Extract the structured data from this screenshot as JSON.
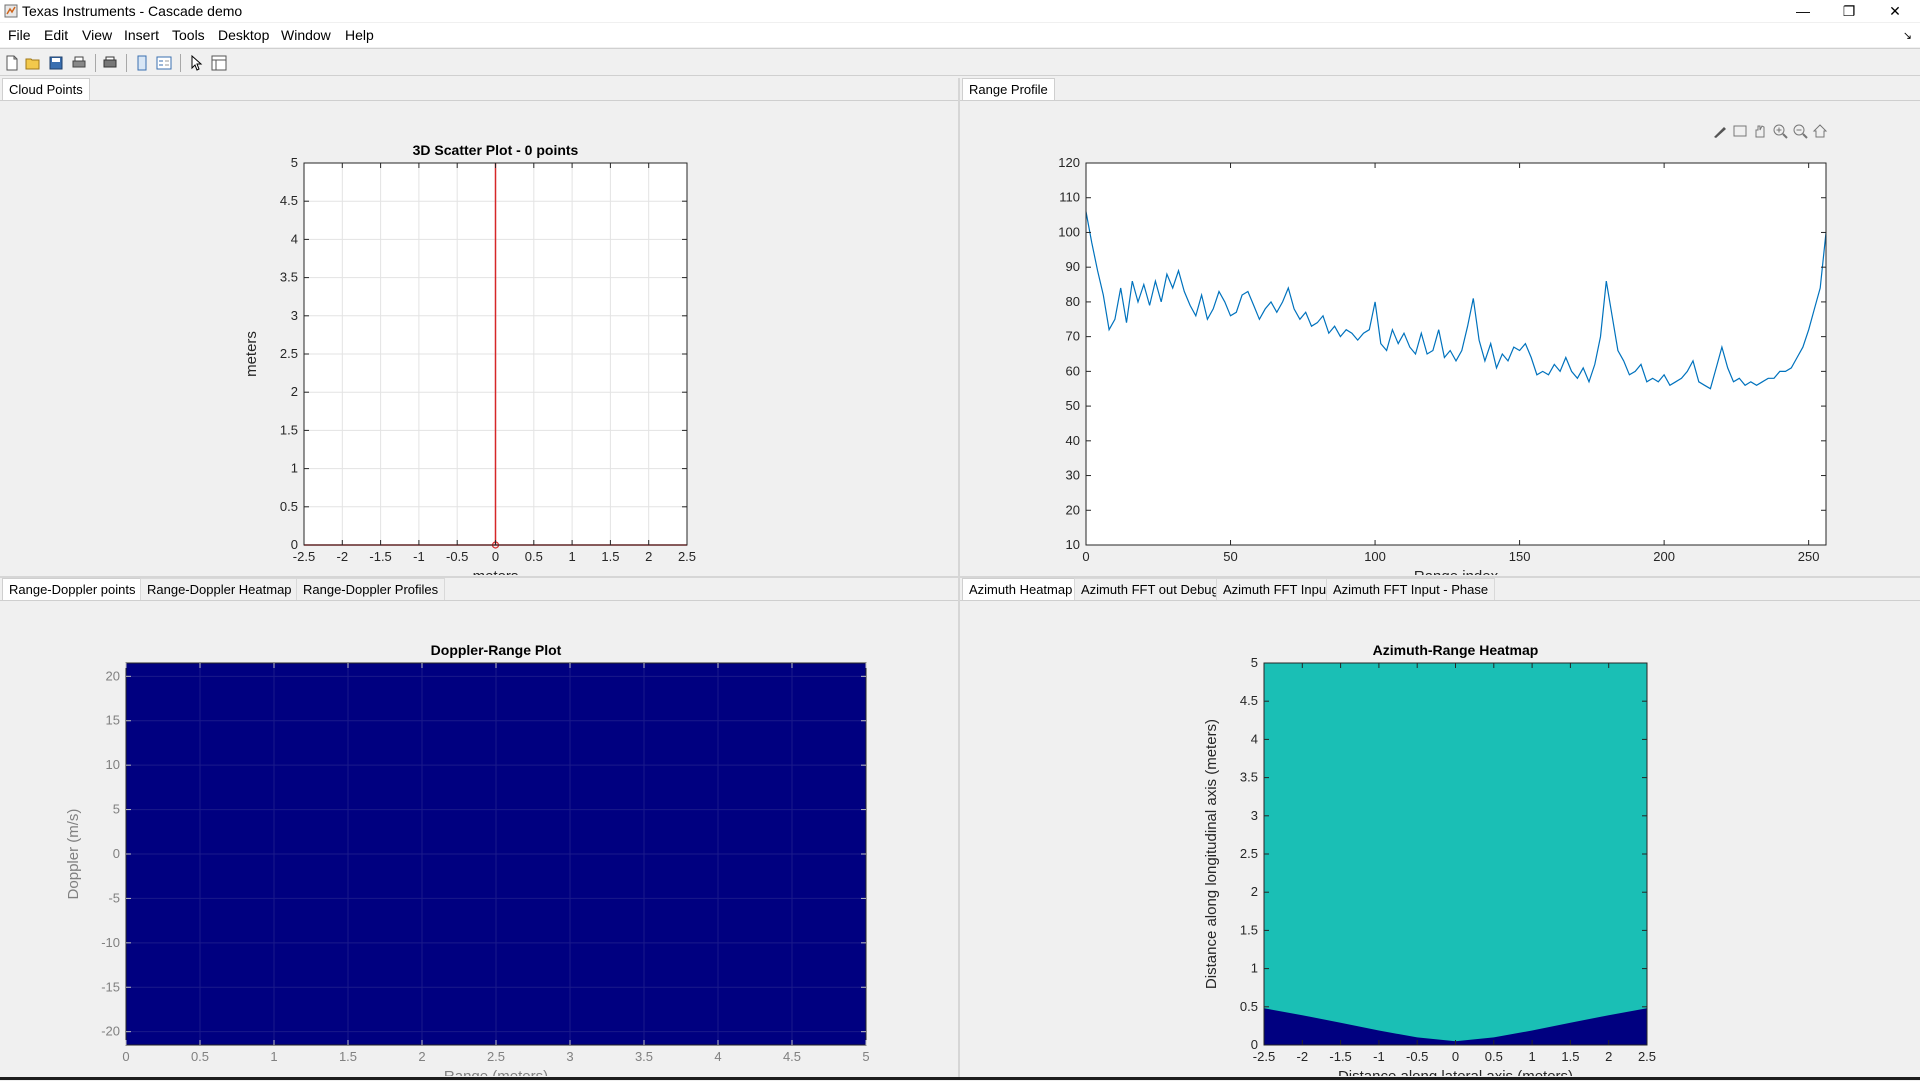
{
  "window": {
    "title": "Texas Instruments - Cascade demo",
    "icon": "matlab-figure-icon",
    "minimize": "—",
    "restore": "❐",
    "close": "✕"
  },
  "menu": {
    "items": [
      "File",
      "Edit",
      "View",
      "Insert",
      "Tools",
      "Desktop",
      "Window",
      "Help"
    ],
    "dock_arrow": "↘"
  },
  "toolbar": {
    "icons": [
      "new-figure-icon",
      "open-icon",
      "save-icon",
      "print-icon",
      "print-preview-icon",
      "toggle-plot-browser-icon",
      "insert-legend-icon",
      "edit-plot-icon",
      "property-inspector-icon"
    ]
  },
  "panels": {
    "top_left": {
      "tabs": [
        {
          "label": "Cloud Points",
          "active": true
        }
      ]
    },
    "top_right": {
      "tabs": [
        {
          "label": "Range Profile",
          "active": true
        }
      ]
    },
    "bottom_left": {
      "tabs": [
        {
          "label": "Range-Doppler points",
          "active": true
        },
        {
          "label": "Range-Doppler Heatmap",
          "active": false
        },
        {
          "label": "Range-Doppler Profiles",
          "active": false
        }
      ]
    },
    "bottom_right": {
      "tabs": [
        {
          "label": "Azimuth Heatmap",
          "active": true
        },
        {
          "label": "Azimuth FFT out Debug",
          "active": false
        },
        {
          "label": "Azimuth FFT Input",
          "active": false
        },
        {
          "label": "Azimuth FFT Input - Phase",
          "active": false
        }
      ]
    }
  },
  "axes_toolbar": {
    "icons": [
      "brush-icon",
      "data-tips-icon",
      "pan-icon",
      "zoom-in-icon",
      "zoom-out-icon",
      "home-icon"
    ]
  },
  "chart_data": [
    {
      "id": "scatter",
      "type": "scatter",
      "title": "3D Scatter Plot -   0 points",
      "xlabel": "meters",
      "ylabel": "meters",
      "xlim": [
        -2.5,
        2.5
      ],
      "ylim": [
        0,
        5
      ],
      "xticks": [
        -2.5,
        -2,
        -1.5,
        -1,
        -0.5,
        0,
        0.5,
        1,
        1.5,
        2,
        2.5
      ],
      "yticks": [
        0,
        0.5,
        1,
        1.5,
        2,
        2.5,
        3,
        3.5,
        4,
        4.5,
        5
      ],
      "grid": true,
      "points": [
        [
          0,
          0
        ]
      ],
      "color": "#d62728",
      "boresight_line_x": 0
    },
    {
      "id": "range_profile",
      "type": "line",
      "title": "",
      "xlabel": "Range index",
      "ylabel": "",
      "xlim": [
        0,
        256
      ],
      "ylim": [
        10,
        120
      ],
      "xticks": [
        0,
        50,
        100,
        150,
        200,
        250
      ],
      "yticks": [
        10,
        20,
        30,
        40,
        50,
        60,
        70,
        80,
        90,
        100,
        110,
        120
      ],
      "grid": false,
      "color": "#0072bd",
      "x": [
        0,
        2,
        4,
        6,
        8,
        10,
        12,
        14,
        16,
        18,
        20,
        22,
        24,
        26,
        28,
        30,
        32,
        34,
        36,
        38,
        40,
        42,
        44,
        46,
        48,
        50,
        52,
        54,
        56,
        58,
        60,
        62,
        64,
        66,
        68,
        70,
        72,
        74,
        76,
        78,
        80,
        82,
        84,
        86,
        88,
        90,
        92,
        94,
        96,
        98,
        100,
        102,
        104,
        106,
        108,
        110,
        112,
        114,
        116,
        118,
        120,
        122,
        124,
        126,
        128,
        130,
        132,
        134,
        136,
        138,
        140,
        142,
        144,
        146,
        148,
        150,
        152,
        154,
        156,
        158,
        160,
        162,
        164,
        166,
        168,
        170,
        172,
        174,
        176,
        178,
        180,
        182,
        184,
        186,
        188,
        190,
        192,
        194,
        196,
        198,
        200,
        202,
        204,
        206,
        208,
        210,
        212,
        214,
        216,
        218,
        220,
        222,
        224,
        226,
        228,
        230,
        232,
        234,
        236,
        238,
        240,
        242,
        244,
        246,
        248,
        250,
        252,
        254,
        256
      ],
      "y": [
        106,
        97,
        89,
        82,
        72,
        75,
        84,
        74,
        86,
        80,
        85,
        79,
        86,
        80,
        88,
        84,
        89,
        83,
        79,
        76,
        82,
        75,
        78,
        83,
        80,
        76,
        77,
        82,
        83,
        79,
        75,
        78,
        80,
        77,
        80,
        84,
        78,
        75,
        77,
        73,
        74,
        76,
        71,
        73,
        70,
        72,
        71,
        69,
        71,
        72,
        80,
        68,
        66,
        72,
        68,
        71,
        67,
        65,
        71,
        65,
        66,
        72,
        64,
        66,
        63,
        66,
        73,
        81,
        69,
        63,
        68,
        61,
        65,
        63,
        67,
        66,
        68,
        64,
        59,
        60,
        59,
        62,
        60,
        64,
        60,
        58,
        61,
        57,
        62,
        70,
        86,
        76,
        66,
        63,
        59,
        60,
        62,
        57,
        58,
        57,
        59,
        56,
        57,
        58,
        60,
        63,
        57,
        56,
        55,
        61,
        67,
        61,
        57,
        58,
        56,
        57,
        56,
        57,
        58,
        58,
        60,
        60,
        61,
        64,
        67,
        72,
        78,
        84,
        100
      ]
    },
    {
      "id": "doppler_range",
      "type": "heatmap",
      "title": "Doppler-Range Plot",
      "xlabel": "Range (meters)",
      "ylabel": "Doppler (m/s)",
      "xlim": [
        0,
        5
      ],
      "ylim": [
        -21.5,
        21.5
      ],
      "xticks": [
        0,
        0.5,
        1,
        1.5,
        2,
        2.5,
        3,
        3.5,
        4,
        4.5,
        5
      ],
      "yticks": [
        -20,
        -15,
        -10,
        -5,
        0,
        5,
        10,
        15,
        20
      ],
      "fill_color": "#000080",
      "points": []
    },
    {
      "id": "azimuth_range",
      "type": "heatmap",
      "title": "Azimuth-Range Heatmap",
      "xlabel": "Distance along lateral axis (meters)",
      "ylabel": "Distance along longitudinal axis (meters)",
      "xlim": [
        -2.5,
        2.5
      ],
      "ylim": [
        0,
        5
      ],
      "xticks": [
        -2.5,
        -2,
        -1.5,
        -1,
        -0.5,
        0,
        0.5,
        1,
        1.5,
        2,
        2.5
      ],
      "yticks": [
        0,
        0.5,
        1,
        1.5,
        2,
        2.5,
        3,
        3.5,
        4,
        4.5,
        5
      ],
      "field_color": "#1abfb5",
      "outside_color": "#000080",
      "fov_boundary": {
        "x": [
          -2.5,
          -2.0,
          -1.5,
          -1.0,
          -0.5,
          0.0,
          0.5,
          1.0,
          1.5,
          2.0,
          2.5
        ],
        "y": [
          0.48,
          0.39,
          0.29,
          0.19,
          0.1,
          0.05,
          0.1,
          0.19,
          0.29,
          0.39,
          0.48
        ]
      }
    }
  ]
}
